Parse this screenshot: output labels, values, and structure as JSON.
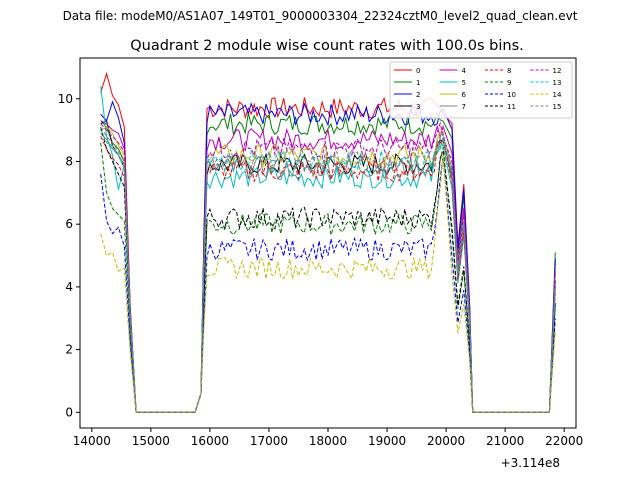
{
  "header": {
    "data_file": "Data file: modeM0/AS1A07_149T01_9000003304_22324cztM0_level2_quad_clean.evt",
    "title": "Quadrant 2 module wise count rates with 100.0s bins."
  },
  "chart_data": {
    "type": "line",
    "x_offset_label": "+3.114e8",
    "xlim": [
      13800,
      22200
    ],
    "ylim": [
      -0.5,
      11.3
    ],
    "x_ticks": [
      {
        "value": 14000,
        "label": "14000"
      },
      {
        "value": 15000,
        "label": "15000"
      },
      {
        "value": 16000,
        "label": "16000"
      },
      {
        "value": 17000,
        "label": "17000"
      },
      {
        "value": 18000,
        "label": "18000"
      },
      {
        "value": 19000,
        "label": "19000"
      },
      {
        "value": 20000,
        "label": "20000"
      },
      {
        "value": 21000,
        "label": "21000"
      },
      {
        "value": 22000,
        "label": "22000"
      }
    ],
    "y_ticks": [
      {
        "value": 0,
        "label": "0"
      },
      {
        "value": 2,
        "label": "2"
      },
      {
        "value": 4,
        "label": "4"
      },
      {
        "value": 6,
        "label": "6"
      },
      {
        "value": 8,
        "label": "8"
      },
      {
        "value": 10,
        "label": "10"
      }
    ],
    "bin_width_s": 100,
    "segments": [
      {
        "start": 14150,
        "end": 14650
      },
      {
        "start": 15850,
        "end": 20450
      },
      {
        "start": 21750,
        "end": 21850
      }
    ],
    "series": [
      {
        "name": "0",
        "color": "#ff0000",
        "dash": "solid",
        "level": 9.7,
        "seg1": [
          10.2,
          10.8,
          10.1,
          9.8,
          9.1,
          3.4
        ],
        "last": 4.8
      },
      {
        "name": "1",
        "color": "#008000",
        "dash": "solid",
        "level": 9.2,
        "seg1": [
          9.3,
          9.1,
          8.6,
          8.4,
          8.0,
          3.2
        ],
        "last": 5.1
      },
      {
        "name": "2",
        "color": "#0000ff",
        "dash": "solid",
        "level": 9.5,
        "seg1": [
          9.5,
          9.3,
          9.9,
          9.4,
          8.6,
          3.3
        ],
        "last": 4.9
      },
      {
        "name": "3",
        "color": "#000000",
        "dash": "solid",
        "level": 7.9,
        "seg1": [
          9.2,
          9.3,
          8.5,
          8.2,
          7.8,
          3.0
        ],
        "last": 4.2
      },
      {
        "name": "4",
        "color": "#bf00bf",
        "dash": "solid",
        "level": 8.7,
        "seg1": [
          9.3,
          9.2,
          9.0,
          8.9,
          8.4,
          3.2
        ],
        "last": 4.5
      },
      {
        "name": "5",
        "color": "#00bfbf",
        "dash": "solid",
        "level": 7.5,
        "seg1": [
          10.4,
          8.8,
          8.2,
          7.1,
          7.9,
          3.0
        ],
        "last": 4.1
      },
      {
        "name": "6",
        "color": "#bfbf00",
        "dash": "solid",
        "level": 8.2,
        "seg1": [
          9.0,
          9.1,
          8.9,
          8.5,
          8.2,
          3.1
        ],
        "last": 4.3
      },
      {
        "name": "7",
        "color": "#808080",
        "dash": "solid",
        "level": 7.8,
        "seg1": [
          8.9,
          8.7,
          8.4,
          8.2,
          7.9,
          3.0
        ],
        "last": 4.0
      },
      {
        "name": "8",
        "color": "#ff0000",
        "dash": "dashed",
        "level": 7.7,
        "seg1": [
          8.8,
          8.4,
          8.1,
          7.9,
          7.5,
          2.9
        ],
        "last": 3.8
      },
      {
        "name": "9",
        "color": "#008000",
        "dash": "dashed",
        "level": 6.0,
        "seg1": [
          8.6,
          7.0,
          6.5,
          6.3,
          6.1,
          2.4
        ],
        "last": 3.4
      },
      {
        "name": "10",
        "color": "#0000ff",
        "dash": "dashed",
        "level": 5.2,
        "seg1": [
          7.6,
          6.1,
          5.7,
          5.9,
          5.3,
          2.2
        ],
        "last": 3.0
      },
      {
        "name": "11",
        "color": "#000000",
        "dash": "dashed",
        "level": 6.2,
        "seg1": [
          9.1,
          8.4,
          8.0,
          7.6,
          7.2,
          2.8
        ],
        "last": 3.5
      },
      {
        "name": "12",
        "color": "#bf00bf",
        "dash": "dashed",
        "level": 8.4,
        "seg1": [
          9.2,
          9.0,
          8.8,
          8.6,
          8.3,
          3.1
        ],
        "last": 4.2
      },
      {
        "name": "13",
        "color": "#00bfbf",
        "dash": "dashed",
        "level": 8.0,
        "seg1": [
          9.0,
          8.6,
          8.5,
          8.2,
          7.8,
          3.0
        ],
        "last": 3.9
      },
      {
        "name": "14",
        "color": "#bfbf00",
        "dash": "dashed",
        "level": 4.6,
        "seg1": [
          5.7,
          5.0,
          5.1,
          4.5,
          4.6,
          1.9
        ],
        "last": 2.6
      },
      {
        "name": "15",
        "color": "#808080",
        "dash": "dashed",
        "level": 8.1,
        "seg1": [
          9.1,
          8.8,
          8.6,
          8.3,
          8.0,
          3.0
        ],
        "last": 4.0
      }
    ],
    "legend_position": "top-right",
    "legend_ncol": 4
  }
}
